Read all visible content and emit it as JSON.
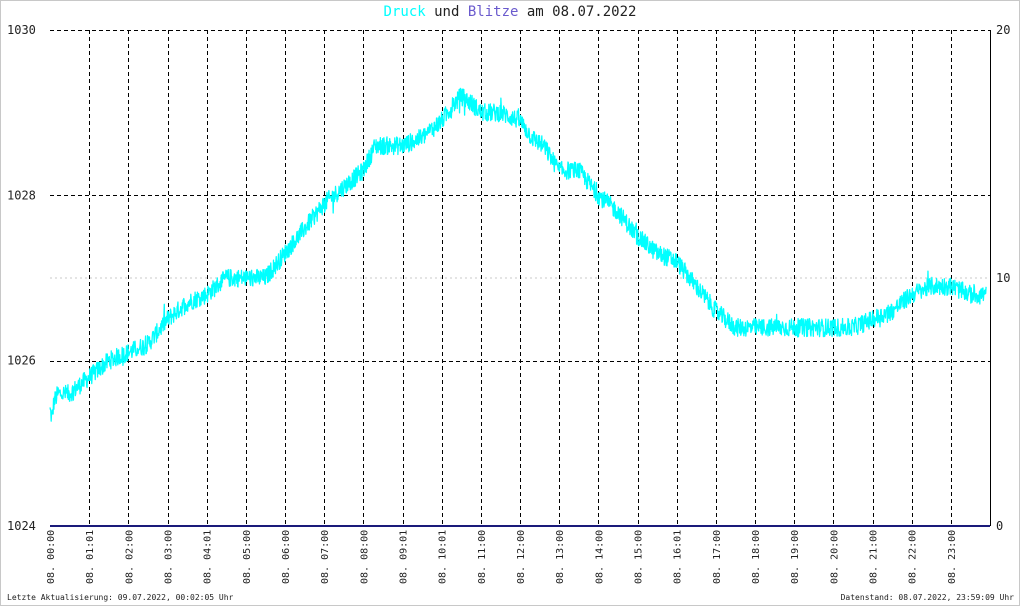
{
  "title": {
    "part1": "Druck",
    "part2": " und ",
    "part3": "Blitze",
    "part4": " am 08.07.2022"
  },
  "colors": {
    "pressure": "#00ffff",
    "lightning": "#6a5acd",
    "lightning_line": "#1a1a7a",
    "grid": "#000000",
    "ref_line": "#c8c8c8"
  },
  "footer": {
    "left": "Letzte Aktualisierung: 09.07.2022, 00:02:05 Uhr",
    "right": "Datenstand: 08.07.2022, 23:59:09 Uhr"
  },
  "chart_data": {
    "type": "line",
    "x_unit": "hour",
    "xlim": [
      0,
      24
    ],
    "x_tick_labels": [
      "08. 00:00",
      "08. 01:01",
      "08. 02:00",
      "08. 03:00",
      "08. 04:01",
      "08. 05:00",
      "08. 06:00",
      "08. 07:00",
      "08. 08:00",
      "08. 09:01",
      "08. 10:01",
      "08. 11:00",
      "08. 12:00",
      "08. 13:00",
      "08. 14:00",
      "08. 15:00",
      "08. 16:01",
      "08. 17:00",
      "08. 18:00",
      "08. 19:00",
      "08. 20:00",
      "08. 21:00",
      "08. 22:00",
      "08. 23:00"
    ],
    "x_tick_hours": [
      0,
      1,
      2,
      3,
      4,
      5,
      6,
      7,
      8,
      9,
      10,
      11,
      12,
      13,
      14,
      15,
      16,
      17,
      18,
      19,
      20,
      21,
      22,
      23
    ],
    "y_left": {
      "label": "",
      "ylim": [
        1024,
        1030
      ],
      "ticks": [
        1024,
        1026,
        1028,
        1030
      ]
    },
    "y_right": {
      "label": "",
      "ylim": [
        0,
        20
      ],
      "ticks": [
        0,
        10,
        20
      ]
    },
    "grid": true,
    "series": [
      {
        "name": "Druck",
        "axis": "left",
        "x": [
          0,
          0.05,
          0.1,
          0.2,
          0.5,
          1,
          1.5,
          2,
          2.5,
          3,
          3.5,
          4,
          4.5,
          5,
          5.5,
          6,
          6.5,
          7,
          7.5,
          8,
          8.3,
          8.7,
          9,
          9.5,
          10,
          10.3,
          10.5,
          10.8,
          11,
          11.5,
          12,
          12.3,
          12.6,
          13,
          13.5,
          14,
          14.5,
          15,
          15.5,
          16,
          16.5,
          17,
          17.5,
          18,
          18.5,
          19,
          19.5,
          20,
          20.5,
          21,
          21.5,
          22,
          22.5,
          23,
          23.5,
          23.9
        ],
        "values": [
          1025.4,
          1025.3,
          1025.5,
          1025.6,
          1025.6,
          1025.8,
          1026.0,
          1026.1,
          1026.2,
          1026.5,
          1026.7,
          1026.8,
          1027.0,
          1027.0,
          1027.0,
          1027.3,
          1027.6,
          1027.9,
          1028.1,
          1028.3,
          1028.6,
          1028.6,
          1028.6,
          1028.7,
          1028.9,
          1029.1,
          1029.2,
          1029.1,
          1029.0,
          1029.0,
          1028.9,
          1028.7,
          1028.6,
          1028.3,
          1028.3,
          1028.0,
          1027.8,
          1027.5,
          1027.3,
          1027.2,
          1026.9,
          1026.6,
          1026.4,
          1026.4,
          1026.4,
          1026.4,
          1026.4,
          1026.4,
          1026.4,
          1026.5,
          1026.6,
          1026.8,
          1026.9,
          1026.9,
          1026.8,
          1026.8
        ]
      },
      {
        "name": "Blitze",
        "axis": "right",
        "x": [
          0,
          24
        ],
        "values": [
          0,
          0
        ]
      }
    ]
  }
}
